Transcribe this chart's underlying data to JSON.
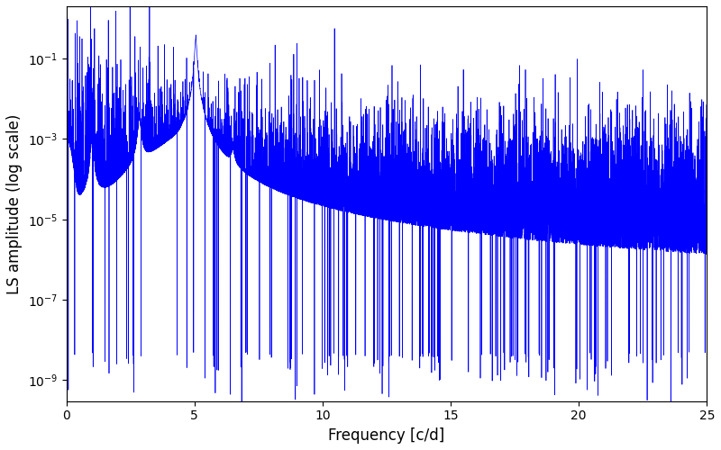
{
  "title": "",
  "xlabel": "Frequency [c/d]",
  "ylabel": "LS amplitude (log scale)",
  "xlim": [
    0,
    25
  ],
  "ylim": [
    3e-10,
    2.0
  ],
  "line_color": "#0000ff",
  "line_width": 0.5,
  "background_color": "#ffffff",
  "figsize": [
    8.0,
    5.0
  ],
  "dpi": 100,
  "yscale": "log",
  "yticks": [
    1e-09,
    1e-07,
    1e-05,
    0.001,
    0.1
  ],
  "xticks": [
    0,
    5,
    10,
    15,
    20,
    25
  ],
  "seed": 12345,
  "num_points": 10000,
  "freq_max": 25.0,
  "noise_floor_log_mean": -5.0,
  "noise_std": 1.2
}
